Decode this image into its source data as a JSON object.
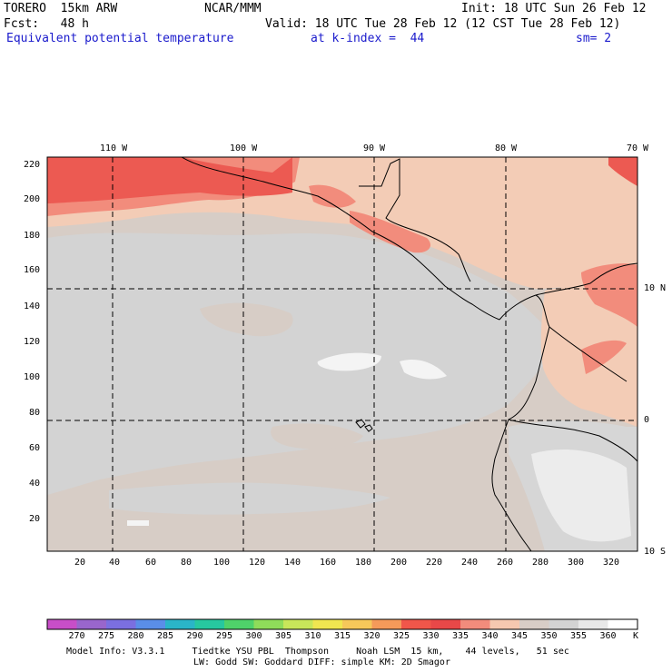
{
  "header": {
    "model": "TORERO  15km ARW",
    "org": "NCAR/MMM",
    "init": "Init: 18 UTC Sun 26 Feb 12",
    "forecast": "Fcst:   48 h",
    "valid": "Valid: 18 UTC Tue 28 Feb 12 (12 CST Tue 28 Feb 12)",
    "field": "Equivalent potential temperature",
    "level": "at k-index =  44",
    "smoothing": "sm= 2"
  },
  "axes": {
    "top_lon_labels": [
      "110 W",
      "100 W",
      "90 W",
      "80 W",
      "70 W"
    ],
    "right_lat_labels": [
      "10 N",
      "0",
      "10 S"
    ],
    "left_grid_labels": [
      "220",
      "200",
      "180",
      "160",
      "140",
      "120",
      "100",
      "80",
      "60",
      "40",
      "20"
    ],
    "bottom_grid_labels": [
      "20",
      "40",
      "60",
      "80",
      "100",
      "120",
      "140",
      "160",
      "180",
      "200",
      "220",
      "240",
      "260",
      "280",
      "300",
      "320"
    ]
  },
  "colorbar": {
    "unit": "K",
    "labels": [
      "270",
      "275",
      "280",
      "285",
      "290",
      "295",
      "300",
      "305",
      "310",
      "315",
      "320",
      "325",
      "330",
      "335",
      "340",
      "345",
      "350",
      "355",
      "360"
    ],
    "colors": [
      "#c84ec8",
      "#9966cc",
      "#7b6fe0",
      "#5a8ee8",
      "#2ab5c8",
      "#27c8a0",
      "#4fd26a",
      "#8fdc5a",
      "#c8e65a",
      "#f0e650",
      "#f6c85a",
      "#f59a5a",
      "#f0564a",
      "#e84848",
      "#f28c7c",
      "#f6c8b0",
      "#d8cdc6",
      "#d3d3d3",
      "#e8e8e8",
      "#ffffff"
    ]
  },
  "footer": {
    "line1": "Model Info: V3.3.1     Tiedtke YSU PBL  Thompson     Noah LSM  15 km,    44 levels,   51 sec",
    "line2": "LW: Godd SW: Goddard DIFF: simple KM: 2D Smagor"
  }
}
